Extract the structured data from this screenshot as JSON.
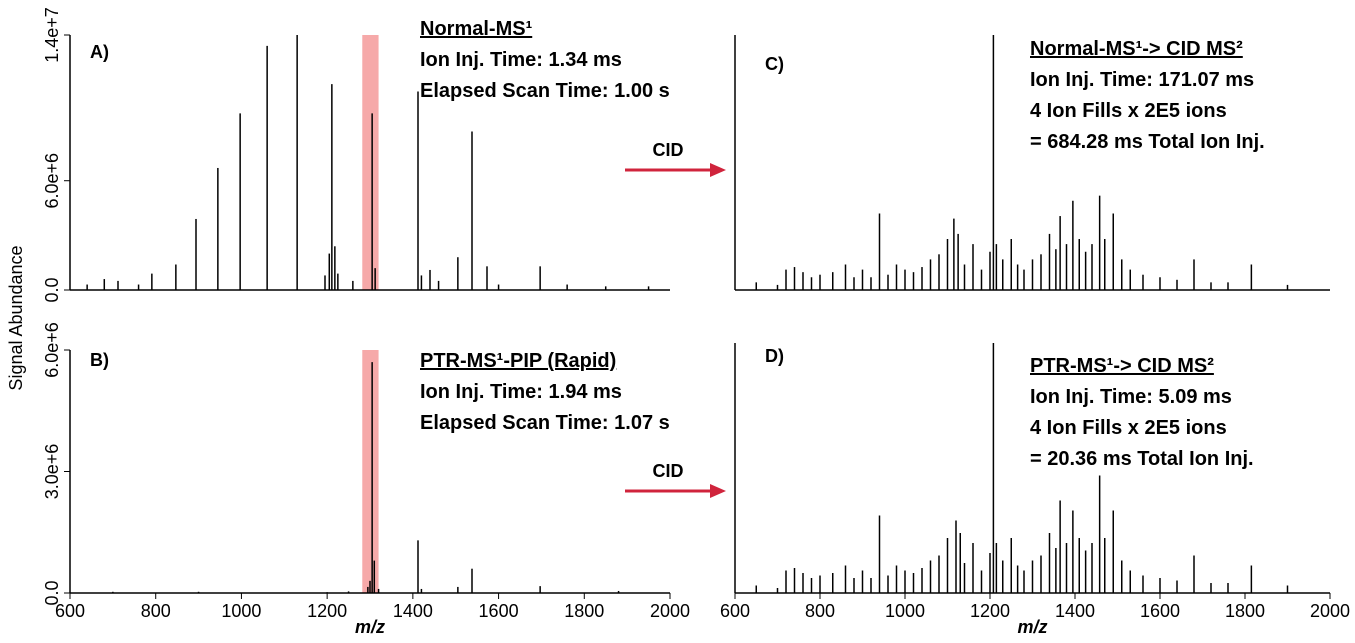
{
  "figure": {
    "y_label": "Signal Abundance",
    "arrow_labels": [
      "CID",
      "CID"
    ]
  },
  "chart_data": [
    {
      "type": "bar",
      "panel": "A)",
      "color": "#000000",
      "highlight_color": "#f49a9a",
      "annotations": [
        "Normal-MS¹",
        "Ion Inj. Time:  1.34 ms",
        "Elapsed Scan Time: 1.00 s"
      ],
      "highlight": [
        1282,
        1320
      ],
      "x": [
        640,
        680,
        712,
        760,
        791,
        847,
        894,
        945,
        997,
        1060,
        1130,
        1195,
        1205,
        1211,
        1218,
        1225,
        1260,
        1305,
        1312,
        1412,
        1420,
        1440,
        1460,
        1505,
        1538,
        1573,
        1600,
        1697,
        1760,
        1850,
        1950
      ],
      "values": [
        300000,
        600000,
        500000,
        300000,
        900000,
        1400000,
        3900000,
        6700000,
        9700000,
        13400000,
        14000000,
        800000,
        2000000,
        11300000,
        2400000,
        900000,
        500000,
        9700000,
        1200000,
        10900000,
        800000,
        1100000,
        500000,
        1800000,
        8700000,
        1300000,
        300000,
        1300000,
        300000,
        200000,
        200000
      ],
      "xlim": [
        600,
        2000
      ],
      "ylim": [
        0,
        14000000
      ],
      "yticks": [
        {
          "value": 0,
          "label": "0.0"
        },
        {
          "value": 6000000,
          "label": "6.0e+6"
        },
        {
          "value": 14000000,
          "label": "1.4e+7"
        }
      ]
    },
    {
      "type": "bar",
      "panel": "B)",
      "color": "#000000",
      "highlight_color": "#f49a9a",
      "annotations": [
        "PTR-MS¹-PIP (Rapid)",
        "Ion Inj. Time:  1.94 ms",
        "Elapsed Scan Time: 1.07 s"
      ],
      "highlight": [
        1282,
        1320
      ],
      "x": [
        700,
        900,
        1200,
        1250,
        1295,
        1300,
        1305,
        1310,
        1320,
        1412,
        1420,
        1505,
        1538,
        1697,
        1880
      ],
      "values": [
        30000,
        30000,
        20000,
        40000,
        150000,
        300000,
        5700000,
        800000,
        100000,
        1300000,
        100000,
        150000,
        600000,
        170000,
        50000
      ],
      "xlim": [
        600,
        2000
      ],
      "ylim": [
        0,
        6000000
      ],
      "yticks": [
        {
          "value": 0,
          "label": "0.0"
        },
        {
          "value": 3000000,
          "label": "3.0e+6"
        },
        {
          "value": 6000000,
          "label": "6.0e+6"
        }
      ],
      "xticks": [
        600,
        800,
        1000,
        1200,
        1400,
        1600,
        1800,
        2000
      ],
      "xlabel": "m/z"
    },
    {
      "type": "bar",
      "panel": "C)",
      "color": "#000000",
      "annotations": [
        "Normal-MS¹-> CID MS²",
        "Ion Inj. Time:  171.07 ms",
        "4 Ion Fills x 2E5 ions",
        "= 684.28  ms Total Ion Inj."
      ],
      "x": [
        650,
        700,
        720,
        740,
        760,
        780,
        800,
        830,
        860,
        880,
        900,
        920,
        940,
        960,
        980,
        1000,
        1020,
        1040,
        1060,
        1080,
        1100,
        1115,
        1125,
        1140,
        1160,
        1180,
        1200,
        1208,
        1215,
        1230,
        1250,
        1265,
        1280,
        1300,
        1320,
        1340,
        1355,
        1365,
        1380,
        1395,
        1410,
        1425,
        1440,
        1458,
        1470,
        1490,
        1510,
        1530,
        1560,
        1600,
        1640,
        1680,
        1720,
        1760,
        1815,
        1900
      ],
      "values": [
        3,
        2,
        8,
        9,
        7,
        5,
        6,
        7,
        10,
        5,
        8,
        5,
        30,
        6,
        10,
        8,
        7,
        9,
        12,
        14,
        20,
        28,
        22,
        10,
        18,
        8,
        15,
        100,
        18,
        12,
        20,
        10,
        8,
        12,
        14,
        22,
        16,
        29,
        18,
        35,
        20,
        15,
        18,
        37,
        20,
        30,
        12,
        8,
        6,
        5,
        4,
        12,
        3,
        3,
        10,
        2
      ],
      "xlim": [
        600,
        2000
      ],
      "ylim": [
        0,
        100
      ]
    },
    {
      "type": "bar",
      "panel": "D)",
      "color": "#000000",
      "annotations": [
        "PTR-MS¹-> CID MS²",
        "Ion Inj. Time:  5.09 ms",
        "4 Ion Fills x 2E5 ions",
        "= 20.36  ms Total Ion Inj."
      ],
      "x": [
        650,
        700,
        720,
        740,
        760,
        780,
        800,
        830,
        860,
        880,
        900,
        920,
        940,
        960,
        980,
        1000,
        1020,
        1040,
        1060,
        1080,
        1100,
        1120,
        1130,
        1140,
        1160,
        1180,
        1200,
        1208,
        1215,
        1230,
        1250,
        1265,
        1280,
        1300,
        1320,
        1340,
        1355,
        1365,
        1380,
        1395,
        1410,
        1425,
        1440,
        1458,
        1470,
        1490,
        1510,
        1530,
        1560,
        1600,
        1640,
        1680,
        1720,
        1760,
        1815,
        1900
      ],
      "values": [
        3,
        2,
        9,
        10,
        8,
        6,
        7,
        8,
        11,
        6,
        9,
        6,
        31,
        7,
        11,
        9,
        8,
        10,
        13,
        15,
        22,
        29,
        24,
        12,
        20,
        9,
        16,
        100,
        20,
        13,
        22,
        11,
        9,
        13,
        15,
        24,
        18,
        37,
        20,
        33,
        22,
        17,
        20,
        47,
        22,
        33,
        13,
        9,
        7,
        6,
        5,
        15,
        4,
        4,
        11,
        3
      ],
      "xlim": [
        600,
        2000
      ],
      "ylim": [
        0,
        100
      ],
      "xticks": [
        600,
        800,
        1000,
        1200,
        1400,
        1600,
        1800,
        2000
      ],
      "xlabel": "m/z"
    }
  ]
}
